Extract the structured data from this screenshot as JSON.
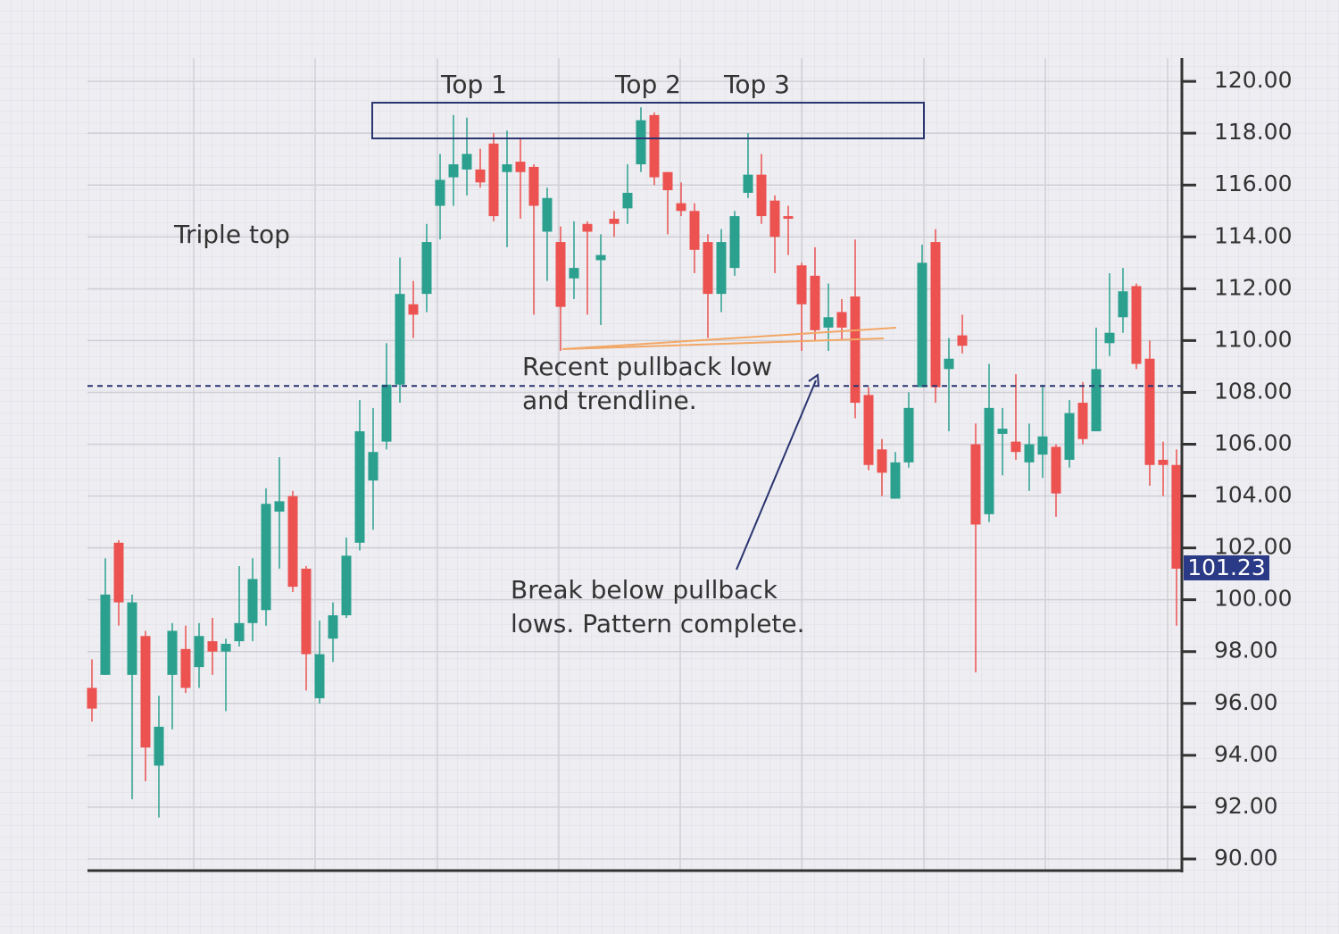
{
  "chart_data": {
    "type": "candlestick",
    "annotations": {
      "title": "Triple top",
      "tops": [
        "Top 1",
        "Top 2",
        "Top 3"
      ],
      "pullback": [
        "Recent pullback low",
        "and trendline."
      ],
      "breakdown": [
        "Break below pullback",
        "lows. Pattern complete."
      ]
    },
    "up_color": "#2ba08f",
    "down_color": "#ec5250",
    "open": [
      96.6,
      97.1,
      102.2,
      97.1,
      98.6,
      93.6,
      97.1,
      98.1,
      97.4,
      98.4,
      98.0,
      98.4,
      99.1,
      99.6,
      103.4,
      104.0,
      101.2,
      96.2,
      98.5,
      99.4,
      102.2,
      104.6,
      106.1,
      108.3,
      111.4,
      111.8,
      115.2,
      116.3,
      116.6,
      116.6,
      117.6,
      116.5,
      116.9,
      116.7,
      114.2,
      113.8,
      112.4,
      114.5,
      113.1,
      114.7,
      115.1,
      116.8,
      118.7,
      116.5,
      115.3,
      115.0,
      113.8,
      111.8,
      112.8,
      115.7,
      116.4,
      115.4,
      114.8,
      112.9,
      112.5,
      110.5,
      111.1,
      111.7,
      107.9,
      105.8,
      103.9,
      105.3,
      108.2,
      113.8,
      108.9,
      110.2,
      106.0,
      103.3,
      106.4,
      106.1,
      105.3,
      105.6,
      105.9,
      105.4,
      107.6,
      106.5,
      109.9,
      110.9,
      112.1,
      109.3,
      105.4,
      105.2
    ],
    "high": [
      97.7,
      101.6,
      102.3,
      100.2,
      98.8,
      96.3,
      99.1,
      99.0,
      99.1,
      99.3,
      98.5,
      101.3,
      101.6,
      104.3,
      105.5,
      104.2,
      101.3,
      99.2,
      99.9,
      102.4,
      107.7,
      107.4,
      109.9,
      113.2,
      112.3,
      114.5,
      117.2,
      118.7,
      118.6,
      117.4,
      118.0,
      118.1,
      117.8,
      116.8,
      115.9,
      114.4,
      114.6,
      114.6,
      114.1,
      115.0,
      116.8,
      119.0,
      118.8,
      116.5,
      116.1,
      115.3,
      114.1,
      114.3,
      115.0,
      118.0,
      117.2,
      115.6,
      115.2,
      113.0,
      113.6,
      112.2,
      111.6,
      113.9,
      108.2,
      106.2,
      105.7,
      108.0,
      113.7,
      114.3,
      110.1,
      111.0,
      106.8,
      109.1,
      107.4,
      108.7,
      106.8,
      108.3,
      106.0,
      107.7,
      108.4,
      110.5,
      112.6,
      112.8,
      112.2,
      110.0,
      106.1,
      105.8
    ],
    "low": [
      95.3,
      97.1,
      99.0,
      92.3,
      93.0,
      91.6,
      95.0,
      96.4,
      96.6,
      97.1,
      95.7,
      98.2,
      98.4,
      99.0,
      101.2,
      100.3,
      96.5,
      96.0,
      97.6,
      99.3,
      101.9,
      102.7,
      105.8,
      107.6,
      110.1,
      111.1,
      113.9,
      115.2,
      115.6,
      115.9,
      114.6,
      113.6,
      114.7,
      111.0,
      112.3,
      109.6,
      111.6,
      111.0,
      110.6,
      114.0,
      114.5,
      116.5,
      116.0,
      114.1,
      114.8,
      112.6,
      110.1,
      111.1,
      112.5,
      115.5,
      114.5,
      112.6,
      113.3,
      109.6,
      110.0,
      109.6,
      110.0,
      107.0,
      105.0,
      104.0,
      103.9,
      105.1,
      108.2,
      107.6,
      106.5,
      109.5,
      97.2,
      103.0,
      104.8,
      105.4,
      104.2,
      104.7,
      103.2,
      105.1,
      106.0,
      106.5,
      109.4,
      110.3,
      108.9,
      104.4,
      104.0,
      99.0
    ],
    "close": [
      95.8,
      100.2,
      99.9,
      99.9,
      94.3,
      95.1,
      98.8,
      96.6,
      98.6,
      98.0,
      98.3,
      99.1,
      100.8,
      103.7,
      103.8,
      100.5,
      97.9,
      97.9,
      99.4,
      101.7,
      106.5,
      105.7,
      108.3,
      111.8,
      111.0,
      113.8,
      116.2,
      116.8,
      117.2,
      116.1,
      114.8,
      116.8,
      116.5,
      115.2,
      115.5,
      111.3,
      112.8,
      114.2,
      113.3,
      114.5,
      115.7,
      118.5,
      116.3,
      115.8,
      115.0,
      113.5,
      111.8,
      113.8,
      114.8,
      116.4,
      114.8,
      114.0,
      114.7,
      111.4,
      110.4,
      110.9,
      110.5,
      107.6,
      105.2,
      104.9,
      105.3,
      107.4,
      113.0,
      108.2,
      109.3,
      109.8,
      102.9,
      107.4,
      106.6,
      105.7,
      106.0,
      106.3,
      104.1,
      107.2,
      106.2,
      108.9,
      110.3,
      111.9,
      109.1,
      105.2,
      105.2,
      101.2
    ],
    "pullback_level": 108.25,
    "last_price": 101.23,
    "ylim": [
      89.55,
      120.9
    ],
    "yticks": [
      {
        "value": 90,
        "label": "90.00"
      },
      {
        "value": 92,
        "label": "92.00"
      },
      {
        "value": 94,
        "label": "94.00"
      },
      {
        "value": 96,
        "label": "96.00"
      },
      {
        "value": 98,
        "label": "98.00"
      },
      {
        "value": 100,
        "label": "100.00"
      },
      {
        "value": 102,
        "label": "102.00"
      },
      {
        "value": 104,
        "label": "104.00"
      },
      {
        "value": 106,
        "label": "106.00"
      },
      {
        "value": 108,
        "label": "108.00"
      },
      {
        "value": 110,
        "label": "110.00"
      },
      {
        "value": 112,
        "label": "112.00"
      },
      {
        "value": 114,
        "label": "114.00"
      },
      {
        "value": 116,
        "label": "116.00"
      },
      {
        "value": 118,
        "label": "118.00"
      },
      {
        "value": 120,
        "label": "120.00"
      }
    ],
    "grid": true
  }
}
